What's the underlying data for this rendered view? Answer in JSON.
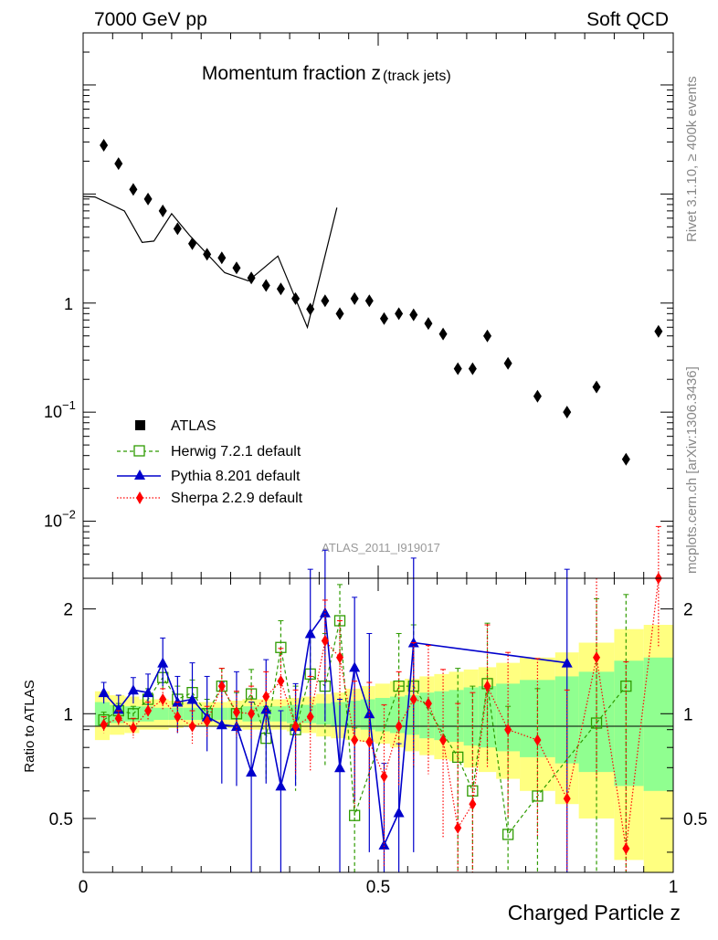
{
  "header": {
    "energy_label": "7000 GeV pp",
    "process_label": "Soft QCD",
    "side_label_top": "Rivet 3.1.10, ≥ 400k events",
    "side_label_bottom": "mcplots.cern.ch [arXiv:1306.3436]",
    "analysis_id": "ATLAS_2011_I919017"
  },
  "colors": {
    "data": "#000000",
    "herwig": "#2e9b00",
    "pythia": "#0000cc",
    "sherpa": "#ff0000",
    "band_outer": "#ffff80",
    "band_inner": "#90ff90"
  },
  "chart_data": [
    {
      "type": "scatter",
      "title": "Momentum fraction z",
      "title_sub": "(track jets)",
      "xlabel": "Charged Particle z",
      "ylabel": "",
      "yscale": "log",
      "xlim": [
        0,
        1
      ],
      "ylim": [
        0.003,
        300
      ],
      "yticks": [
        {
          "value": 1,
          "label": "1"
        },
        {
          "value": 0.1,
          "label": "10",
          "exp": "−1"
        },
        {
          "value": 0.01,
          "label": "10",
          "exp": "−2"
        }
      ],
      "legend": [
        {
          "name": "ATLAS",
          "marker": "square-filled"
        },
        {
          "name": "Herwig 7.2.1 default",
          "marker": "square-open"
        },
        {
          "name": "Pythia 8.201 default",
          "marker": "triangle"
        },
        {
          "name": "Sherpa 2.2.9 default",
          "marker": "diamond"
        }
      ],
      "legend_placement": "bottom-left",
      "series": [
        {
          "name": "ATLAS",
          "x": [
            0.035,
            0.06,
            0.085,
            0.11,
            0.135,
            0.16,
            0.185,
            0.21,
            0.235,
            0.26,
            0.285,
            0.31,
            0.335,
            0.36,
            0.385,
            0.41,
            0.435,
            0.46,
            0.485,
            0.51,
            0.535,
            0.56,
            0.585,
            0.61,
            0.635,
            0.66,
            0.685,
            0.72,
            0.77,
            0.82,
            0.87,
            0.92,
            0.975
          ],
          "values": [
            28,
            19,
            11,
            9,
            7,
            4.8,
            3.5,
            2.8,
            2.6,
            2.1,
            1.7,
            1.45,
            1.35,
            1.1,
            0.88,
            1.05,
            0.8,
            1.1,
            1.05,
            0.72,
            0.8,
            0.78,
            0.65,
            0.52,
            0.25,
            0.25,
            0.5,
            0.28,
            0.14,
            0.1,
            0.17,
            0.037,
            0.55
          ]
        },
        {
          "name": "Model line",
          "x": [
            0,
            0.02,
            0.07,
            0.1,
            0.12,
            0.15,
            0.18,
            0.24,
            0.28,
            0.33,
            0.38,
            0.43
          ],
          "values": [
            9.5,
            9.4,
            7,
            3.6,
            3.7,
            6.6,
            4.2,
            1.9,
            1.6,
            2.7,
            0.6,
            7.5
          ]
        }
      ]
    },
    {
      "type": "scatter",
      "title": "",
      "xlabel": "Charged Particle z",
      "ylabel": "Ratio to ATLAS",
      "yscale": "log",
      "xlim": [
        0,
        1
      ],
      "ylim": [
        0.35,
        2.45
      ],
      "xticks": [
        0,
        0.5,
        1
      ],
      "yticks": [
        0.5,
        1,
        2
      ],
      "series": [
        {
          "name": "Herwig 7.2.1 default",
          "x": [
            0.035,
            0.06,
            0.085,
            0.11,
            0.135,
            0.16,
            0.185,
            0.21,
            0.235,
            0.26,
            0.285,
            0.31,
            0.335,
            0.36,
            0.385,
            0.41,
            0.435,
            0.46,
            0.535,
            0.56,
            0.635,
            0.66,
            0.685,
            0.72,
            0.77,
            0.87,
            0.92
          ],
          "values": [
            0.96,
            1.02,
            1.0,
            1.1,
            1.27,
            1.1,
            1.15,
            1.0,
            1.2,
            1.0,
            1.14,
            0.85,
            1.55,
            0.9,
            1.3,
            1.2,
            1.85,
            0.51,
            1.2,
            1.2,
            0.75,
            0.6,
            1.22,
            0.45,
            0.58,
            0.94,
            1.2
          ],
          "err_lo": [
            0.05,
            0.05,
            0.05,
            0.08,
            0.1,
            0.1,
            0.1,
            0.1,
            0.15,
            0.15,
            0.2,
            0.2,
            0.2,
            0.3,
            0.4,
            0.5,
            0.5,
            0.3,
            0.5,
            0.5,
            0.4,
            0.4,
            0.5,
            0.4,
            0.4,
            0.6,
            0.9
          ],
          "err_hi": [
            0.05,
            0.05,
            0.05,
            0.08,
            0.1,
            0.1,
            0.1,
            0.1,
            0.15,
            0.15,
            0.2,
            0.2,
            0.3,
            0.3,
            0.4,
            0.5,
            0.5,
            0.4,
            0.5,
            0.6,
            0.6,
            0.6,
            0.6,
            0.6,
            0.6,
            1.2,
            1.0
          ]
        },
        {
          "name": "Pythia 8.201 default",
          "x": [
            0.035,
            0.06,
            0.085,
            0.11,
            0.135,
            0.16,
            0.185,
            0.21,
            0.235,
            0.26,
            0.285,
            0.31,
            0.335,
            0.36,
            0.385,
            0.41,
            0.435,
            0.46,
            0.485,
            0.51,
            0.535,
            0.56,
            0.82
          ],
          "values": [
            1.15,
            1.03,
            1.17,
            1.15,
            1.4,
            1.08,
            1.1,
            0.98,
            0.93,
            0.92,
            0.68,
            1.03,
            0.62,
            0.92,
            1.7,
            1.95,
            0.7,
            1.36,
            1.0,
            0.42,
            0.52,
            1.6,
            1.4
          ],
          "err_lo": [
            0.08,
            0.08,
            0.1,
            0.12,
            0.2,
            0.2,
            0.2,
            0.2,
            0.3,
            0.3,
            0.4,
            0.4,
            0.3,
            0.3,
            0.8,
            1.0,
            0.4,
            0.8,
            0.6,
            0.3,
            0.3,
            1.2,
            1.2
          ],
          "err_hi": [
            0.08,
            0.1,
            0.1,
            0.15,
            0.25,
            0.2,
            0.3,
            0.3,
            0.3,
            0.4,
            0.4,
            0.4,
            0.4,
            0.3,
            0.9,
            1.0,
            0.4,
            0.8,
            0.7,
            0.3,
            0.3,
            1.2,
            1.2
          ]
        },
        {
          "name": "Sherpa 2.2.9 default",
          "x": [
            0.035,
            0.06,
            0.085,
            0.11,
            0.135,
            0.16,
            0.185,
            0.21,
            0.235,
            0.26,
            0.285,
            0.31,
            0.335,
            0.36,
            0.385,
            0.41,
            0.435,
            0.46,
            0.485,
            0.51,
            0.535,
            0.56,
            0.585,
            0.61,
            0.635,
            0.66,
            0.685,
            0.72,
            0.77,
            0.82,
            0.87,
            0.92,
            0.975
          ],
          "values": [
            0.93,
            0.97,
            0.91,
            1.02,
            1.1,
            0.98,
            0.92,
            0.95,
            1.2,
            1.01,
            1.0,
            1.12,
            1.24,
            0.92,
            0.98,
            1.62,
            1.45,
            0.84,
            0.83,
            0.66,
            0.92,
            1.1,
            1.07,
            0.84,
            0.47,
            0.55,
            1.2,
            0.9,
            0.84,
            0.57,
            1.45,
            0.41,
            2.45
          ],
          "err_lo": [
            0.05,
            0.05,
            0.06,
            0.06,
            0.08,
            0.1,
            0.1,
            0.1,
            0.15,
            0.15,
            0.15,
            0.2,
            0.2,
            0.25,
            0.3,
            0.4,
            0.4,
            0.3,
            0.3,
            0.3,
            0.3,
            0.4,
            0.4,
            0.4,
            0.3,
            0.3,
            0.5,
            0.4,
            0.4,
            0.4,
            0.8,
            0.3,
            0.9
          ],
          "err_hi": [
            0.05,
            0.05,
            0.06,
            0.06,
            0.08,
            0.1,
            0.1,
            0.1,
            0.15,
            0.15,
            0.2,
            0.2,
            0.3,
            0.25,
            0.3,
            0.5,
            0.4,
            0.4,
            0.4,
            0.4,
            0.4,
            0.5,
            0.5,
            0.5,
            0.6,
            0.6,
            0.6,
            0.6,
            0.6,
            0.6,
            1.0,
            1.0,
            1.0
          ]
        }
      ],
      "uncertainty_band": {
        "x_edges": [
          0.02,
          0.045,
          0.07,
          0.095,
          0.12,
          0.145,
          0.17,
          0.195,
          0.22,
          0.245,
          0.27,
          0.295,
          0.32,
          0.345,
          0.37,
          0.395,
          0.42,
          0.445,
          0.47,
          0.495,
          0.52,
          0.545,
          0.57,
          0.595,
          0.62,
          0.645,
          0.67,
          0.7,
          0.74,
          0.8,
          0.84,
          0.9,
          0.95,
          1.0
        ],
        "outer_lo": [
          0.84,
          0.87,
          0.88,
          0.9,
          0.9,
          0.91,
          0.92,
          0.92,
          0.92,
          0.91,
          0.9,
          0.9,
          0.9,
          0.89,
          0.88,
          0.86,
          0.85,
          0.84,
          0.83,
          0.82,
          0.8,
          0.78,
          0.76,
          0.74,
          0.73,
          0.7,
          0.68,
          0.65,
          0.6,
          0.55,
          0.5,
          0.38,
          0.35
        ],
        "outer_hi": [
          1.16,
          1.13,
          1.12,
          1.1,
          1.1,
          1.09,
          1.08,
          1.08,
          1.08,
          1.09,
          1.1,
          1.1,
          1.1,
          1.11,
          1.12,
          1.14,
          1.15,
          1.18,
          1.2,
          1.22,
          1.24,
          1.26,
          1.28,
          1.3,
          1.32,
          1.34,
          1.36,
          1.4,
          1.45,
          1.5,
          1.6,
          1.75,
          1.8
        ],
        "inner_lo": [
          0.92,
          0.94,
          0.95,
          0.95,
          0.96,
          0.96,
          0.96,
          0.96,
          0.96,
          0.96,
          0.95,
          0.95,
          0.95,
          0.94,
          0.94,
          0.93,
          0.92,
          0.91,
          0.9,
          0.89,
          0.88,
          0.87,
          0.85,
          0.84,
          0.83,
          0.81,
          0.8,
          0.78,
          0.75,
          0.72,
          0.68,
          0.62,
          0.6
        ],
        "inner_hi": [
          1.08,
          1.06,
          1.05,
          1.05,
          1.04,
          1.04,
          1.04,
          1.04,
          1.04,
          1.04,
          1.05,
          1.05,
          1.05,
          1.06,
          1.06,
          1.07,
          1.08,
          1.09,
          1.1,
          1.11,
          1.12,
          1.13,
          1.15,
          1.16,
          1.17,
          1.19,
          1.2,
          1.22,
          1.25,
          1.28,
          1.32,
          1.42,
          1.45
        ]
      }
    }
  ]
}
